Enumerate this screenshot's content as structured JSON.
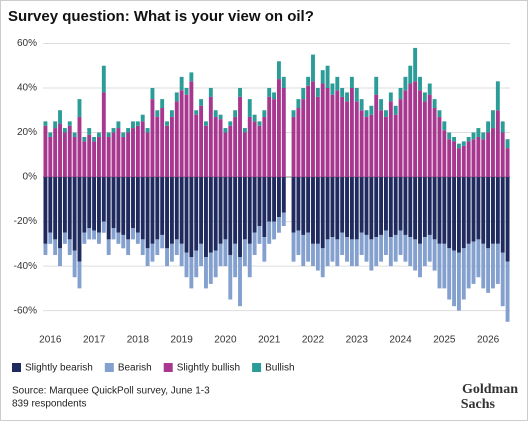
{
  "chart_data": {
    "type": "stacked_bar",
    "title": "Survey question: What is your view on oil?",
    "categories": [
      null,
      "2016",
      null,
      null,
      null,
      null,
      null,
      null,
      null,
      null,
      "2017",
      null,
      null,
      null,
      null,
      null,
      null,
      null,
      null,
      "2018",
      null,
      null,
      null,
      null,
      null,
      null,
      null,
      null,
      "2019",
      null,
      null,
      null,
      null,
      null,
      null,
      null,
      null,
      "2020",
      null,
      null,
      null,
      null,
      null,
      null,
      null,
      null,
      "2021",
      null,
      null,
      null,
      null,
      null,
      null,
      null,
      null,
      "2022",
      null,
      null,
      null,
      null,
      null,
      null,
      null,
      null,
      "2023",
      null,
      null,
      null,
      null,
      null,
      null,
      null,
      null,
      "2024",
      null,
      null,
      null,
      null,
      null,
      null,
      null,
      null,
      "2025",
      null,
      null,
      null,
      null,
      null,
      null,
      null,
      null,
      "2026",
      null,
      null,
      null,
      null
    ],
    "series": [
      {
        "name": "Slightly bearish",
        "color": "#1f2a5e",
        "values": [
          -30,
          -25,
          -28,
          -32,
          -25,
          -28,
          -33,
          -38,
          -25,
          -23,
          -24,
          -25,
          -20,
          -28,
          -23,
          -25,
          -26,
          -28,
          -23,
          -25,
          -28,
          -32,
          -30,
          -28,
          -26,
          -32,
          -30,
          -28,
          -30,
          -34,
          -36,
          -33,
          -30,
          -36,
          -34,
          -33,
          -30,
          -28,
          -35,
          -30,
          -36,
          -28,
          -30,
          -25,
          -22,
          -27,
          -20,
          -20,
          -18,
          -16,
          null,
          -25,
          -24,
          -26,
          -25,
          -30,
          -30,
          -32,
          -28,
          -27,
          -28,
          -25,
          -27,
          -28,
          -28,
          -25,
          -26,
          -28,
          -27,
          -26,
          -24,
          -27,
          -26,
          -24,
          -26,
          -27,
          -28,
          -30,
          -27,
          -26,
          -28,
          -30,
          -30,
          -32,
          -33,
          -34,
          -32,
          -30,
          -29,
          -28,
          -30,
          -32,
          -30,
          -30,
          -34,
          -38
        ]
      },
      {
        "name": "Bearish",
        "color": "#84a0cf",
        "values": [
          -5,
          -5,
          -7,
          -8,
          -5,
          -7,
          -12,
          -12,
          -5,
          -5,
          -4,
          -5,
          -5,
          -7,
          -5,
          -5,
          -6,
          -7,
          -5,
          -5,
          -7,
          -8,
          -8,
          -7,
          -6,
          -8,
          -8,
          -7,
          -10,
          -11,
          -14,
          -12,
          -10,
          -14,
          -14,
          -12,
          -10,
          -12,
          -20,
          -15,
          -22,
          -12,
          -15,
          -10,
          -8,
          -11,
          -10,
          -8,
          -7,
          -6,
          null,
          -13,
          -11,
          -14,
          -13,
          -10,
          -12,
          -13,
          -12,
          -11,
          -12,
          -10,
          -11,
          -12,
          -12,
          -10,
          -12,
          -14,
          -13,
          -12,
          -11,
          -13,
          -12,
          -11,
          -12,
          -13,
          -14,
          -15,
          -13,
          -12,
          -14,
          -20,
          -20,
          -23,
          -25,
          -26,
          -23,
          -20,
          -19,
          -17,
          -20,
          -20,
          -20,
          -18,
          -24,
          -27
        ]
      },
      {
        "name": "Slightly bullish",
        "color": "#a8388f",
        "values": [
          23,
          18,
          22,
          24,
          20,
          23,
          18,
          27,
          16,
          19,
          16,
          18,
          38,
          18,
          20,
          22,
          18,
          20,
          22,
          23,
          25,
          20,
          35,
          27,
          31,
          23,
          27,
          34,
          39,
          37,
          43,
          28,
          32,
          23,
          36,
          27,
          26,
          20,
          23,
          27,
          36,
          20,
          27,
          25,
          23,
          27,
          36,
          35,
          44,
          40,
          null,
          27,
          31,
          35,
          41,
          43,
          36,
          42,
          40,
          37,
          39,
          36,
          34,
          40,
          34,
          30,
          27,
          28,
          37,
          30,
          27,
          34,
          28,
          35,
          39,
          42,
          43,
          39,
          34,
          37,
          31,
          27,
          21,
          17,
          16,
          13,
          14,
          16,
          17,
          18,
          17,
          20,
          22,
          30,
          20,
          13
        ]
      },
      {
        "name": "Bullish",
        "color": "#2b9c97",
        "values": [
          2,
          2,
          3,
          6,
          2,
          2,
          2,
          8,
          2,
          3,
          2,
          2,
          12,
          2,
          2,
          3,
          2,
          2,
          3,
          2,
          3,
          2,
          5,
          3,
          4,
          2,
          3,
          4,
          6,
          3,
          4,
          2,
          3,
          2,
          4,
          3,
          2,
          2,
          2,
          3,
          4,
          2,
          8,
          3,
          2,
          3,
          4,
          3,
          8,
          5,
          null,
          3,
          4,
          5,
          4,
          12,
          4,
          6,
          10,
          5,
          6,
          4,
          4,
          5,
          6,
          5,
          3,
          4,
          8,
          5,
          3,
          4,
          4,
          5,
          6,
          8,
          15,
          6,
          4,
          5,
          4,
          3,
          4,
          3,
          2,
          2,
          2,
          2,
          3,
          4,
          3,
          5,
          8,
          13,
          5,
          4
        ]
      }
    ],
    "ylim": [
      -66,
      62
    ],
    "yticks": [
      {
        "value": 60,
        "label": "60%"
      },
      {
        "value": 40,
        "label": "40%"
      },
      {
        "value": 20,
        "label": "20%"
      },
      {
        "value": 0,
        "label": "0%"
      },
      {
        "value": -20,
        "label": "-20%"
      },
      {
        "value": -40,
        "label": "-40%"
      },
      {
        "value": -60,
        "label": "-60%"
      }
    ],
    "grid": true,
    "source": [
      "Source: Marquee QuickPoll survey, June 1-3",
      "839 respondents"
    ],
    "logo": [
      "Goldman",
      "Sachs"
    ]
  }
}
